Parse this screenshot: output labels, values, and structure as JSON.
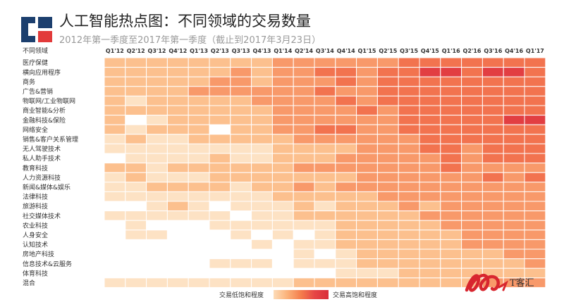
{
  "header": {
    "title": "人工智能热点图：不同领域的交易数量",
    "subtitle": "2012年第一季度至2017年第一季度（截止到2017年3月23日）"
  },
  "legend": {
    "low_label": "交易低饱和程度",
    "high_label": "交易高饱和程度"
  },
  "watermark": {
    "text": "T客汇"
  },
  "colors": {
    "brand_blue": "#1c3f6e",
    "brand_red": "#e23a3a",
    "grid_line": "#ffffff"
  },
  "chart_data": {
    "type": "heatmap",
    "corner_label": "不同领域",
    "x": [
      "Q1'12",
      "Q2'12",
      "Q3'12",
      "Q4'12",
      "Q1'13",
      "Q2'13",
      "Q3'13",
      "Q4'13",
      "Q1'14",
      "Q2'14",
      "Q3'14",
      "Q4'14",
      "Q1'15",
      "Q2'15",
      "Q3'15",
      "Q4'15",
      "Q1'16",
      "Q2'16",
      "Q3'16",
      "Q4'16",
      "Q1'17"
    ],
    "y": [
      "医疗保健",
      "横向应用程序",
      "商务",
      "广告&营销",
      "物联网/工业物联网",
      "商业智能&分析",
      "金融科技&保险",
      "网络安全",
      "销售&客户关系管理",
      "无人驾驶技术",
      "私人助手技术",
      "教育科技",
      "人力资源科技",
      "新闻&媒体&娱乐",
      "法律科技",
      "旅游科技",
      "社交媒体技术",
      "农业科技",
      "人身安全",
      "认知技术",
      "房地产科技",
      "信息技术&云服务",
      "体育科技",
      "混合"
    ],
    "value_scale": [
      0,
      5
    ],
    "values": [
      [
        2,
        2,
        2,
        2,
        2,
        2,
        2,
        2,
        3,
        3,
        3,
        3,
        3,
        3,
        4,
        4,
        4,
        4,
        4,
        4,
        4
      ],
      [
        2,
        2,
        2,
        2,
        2,
        2,
        3,
        2,
        3,
        3,
        4,
        4,
        3,
        4,
        4,
        5,
        5,
        4,
        5,
        5,
        4
      ],
      [
        2,
        2,
        2,
        2,
        2,
        3,
        3,
        2,
        3,
        3,
        3,
        4,
        3,
        4,
        4,
        4,
        4,
        4,
        4,
        4,
        4
      ],
      [
        2,
        2,
        2,
        2,
        3,
        3,
        3,
        3,
        3,
        3,
        4,
        3,
        3,
        4,
        4,
        4,
        4,
        4,
        4,
        4,
        4
      ],
      [
        2,
        1,
        2,
        2,
        2,
        2,
        2,
        3,
        3,
        3,
        3,
        4,
        3,
        4,
        4,
        4,
        4,
        4,
        4,
        4,
        4
      ],
      [
        2,
        2,
        2,
        2,
        2,
        2,
        2,
        2,
        3,
        3,
        3,
        3,
        4,
        3,
        4,
        4,
        4,
        4,
        4,
        4,
        4
      ],
      [
        2,
        0,
        1,
        2,
        2,
        2,
        2,
        2,
        3,
        3,
        3,
        3,
        3,
        3,
        4,
        4,
        4,
        4,
        4,
        5,
        5
      ],
      [
        2,
        1,
        2,
        2,
        2,
        0,
        2,
        2,
        3,
        3,
        4,
        4,
        3,
        3,
        4,
        4,
        4,
        4,
        4,
        4,
        4
      ],
      [
        1,
        2,
        1,
        1,
        2,
        2,
        2,
        2,
        2,
        3,
        3,
        3,
        3,
        3,
        3,
        4,
        4,
        4,
        4,
        4,
        4
      ],
      [
        1,
        1,
        1,
        1,
        1,
        1,
        1,
        1,
        2,
        2,
        2,
        2,
        3,
        3,
        3,
        4,
        4,
        3,
        4,
        4,
        4
      ],
      [
        0,
        1,
        1,
        1,
        1,
        2,
        1,
        1,
        2,
        2,
        2,
        3,
        3,
        3,
        3,
        3,
        4,
        3,
        4,
        4,
        4
      ],
      [
        2,
        2,
        1,
        2,
        2,
        2,
        2,
        2,
        2,
        3,
        3,
        3,
        3,
        3,
        3,
        3,
        4,
        3,
        3,
        3,
        3
      ],
      [
        1,
        2,
        1,
        1,
        1,
        2,
        2,
        2,
        2,
        2,
        2,
        2,
        3,
        3,
        3,
        3,
        3,
        3,
        4,
        3,
        4
      ],
      [
        1,
        1,
        2,
        2,
        2,
        2,
        1,
        2,
        2,
        3,
        2,
        3,
        3,
        3,
        3,
        3,
        3,
        3,
        3,
        3,
        3
      ],
      [
        1,
        1,
        1,
        1,
        1,
        1,
        1,
        1,
        2,
        2,
        2,
        2,
        2,
        3,
        3,
        3,
        3,
        3,
        3,
        3,
        3
      ],
      [
        0,
        0,
        1,
        2,
        1,
        0,
        1,
        1,
        1,
        2,
        1,
        2,
        2,
        2,
        3,
        2,
        3,
        3,
        3,
        3,
        3
      ],
      [
        1,
        1,
        1,
        1,
        1,
        1,
        0,
        1,
        1,
        2,
        2,
        2,
        2,
        2,
        2,
        3,
        3,
        3,
        3,
        3,
        3
      ],
      [
        0,
        1,
        0,
        0,
        0,
        1,
        1,
        1,
        1,
        1,
        1,
        2,
        2,
        2,
        2,
        2,
        3,
        3,
        3,
        3,
        3
      ],
      [
        0,
        1,
        1,
        0,
        0,
        0,
        1,
        0,
        1,
        0,
        1,
        2,
        2,
        2,
        2,
        2,
        2,
        3,
        3,
        3,
        3
      ],
      [
        0,
        0,
        0,
        0,
        0,
        0,
        0,
        1,
        0,
        1,
        1,
        2,
        2,
        2,
        2,
        2,
        2,
        3,
        3,
        3,
        3
      ],
      [
        0,
        0,
        0,
        0,
        0,
        0,
        0,
        0,
        0,
        1,
        0,
        1,
        2,
        2,
        2,
        2,
        2,
        2,
        2,
        3,
        3
      ],
      [
        0,
        0,
        0,
        0,
        0,
        1,
        1,
        1,
        0,
        1,
        1,
        1,
        2,
        2,
        2,
        2,
        2,
        2,
        2,
        2,
        3
      ],
      [
        0,
        0,
        0,
        0,
        0,
        0,
        0,
        0,
        0,
        0,
        0,
        1,
        1,
        1,
        2,
        2,
        2,
        2,
        2,
        2,
        2
      ],
      [
        1,
        1,
        1,
        1,
        1,
        1,
        1,
        1,
        1,
        2,
        2,
        2,
        2,
        2,
        2,
        2,
        2,
        2,
        3,
        3,
        3
      ]
    ]
  }
}
